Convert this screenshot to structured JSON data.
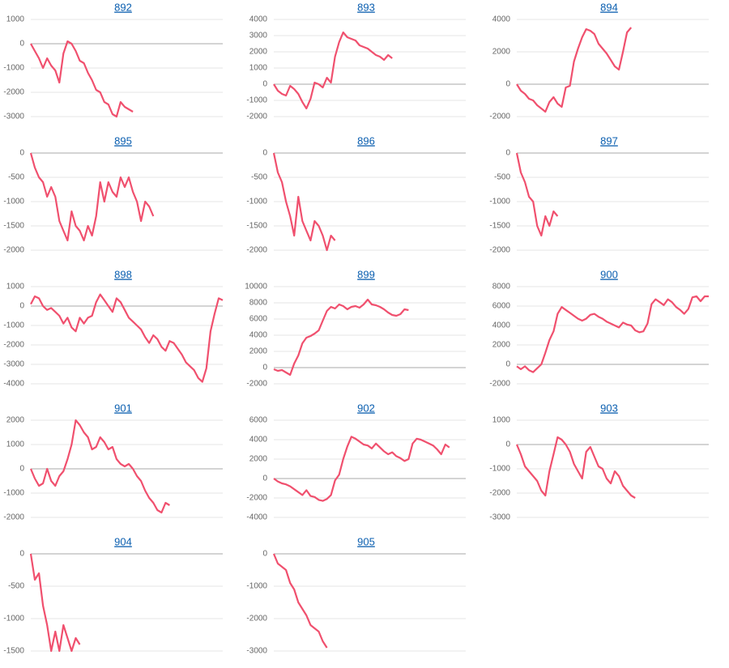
{
  "chart_data": [
    {
      "type": "line",
      "title": "892",
      "color": "#f0506e",
      "grid": true,
      "ylim": [
        -3000,
        1000
      ],
      "yticks": [
        1000,
        0,
        -1000,
        -2000,
        -3000
      ],
      "values": [
        0,
        -300,
        -600,
        -1000,
        -600,
        -900,
        -1100,
        -1600,
        -400,
        100,
        0,
        -300,
        -700,
        -800,
        -1200,
        -1500,
        -1900,
        -2000,
        -2400,
        -2500,
        -2900,
        -3000,
        -2400,
        -2600,
        -2700,
        -2800
      ]
    },
    {
      "type": "line",
      "title": "893",
      "color": "#f0506e",
      "grid": true,
      "ylim": [
        -2000,
        4000
      ],
      "yticks": [
        4000,
        3000,
        2000,
        1000,
        0,
        -1000,
        -2000
      ],
      "values": [
        0,
        -400,
        -600,
        -700,
        -100,
        -300,
        -600,
        -1100,
        -1500,
        -900,
        100,
        0,
        -200,
        400,
        100,
        1700,
        2600,
        3200,
        2900,
        2800,
        2700,
        2400,
        2300,
        2200,
        2000,
        1800,
        1700,
        1500,
        1800,
        1600
      ]
    },
    {
      "type": "line",
      "title": "894",
      "color": "#f0506e",
      "grid": true,
      "ylim": [
        -2000,
        4000
      ],
      "yticks": [
        4000,
        2000,
        0,
        -2000
      ],
      "values": [
        0,
        -400,
        -600,
        -900,
        -1000,
        -1300,
        -1500,
        -1700,
        -1100,
        -800,
        -1200,
        -1400,
        -200,
        -100,
        1400,
        2200,
        2900,
        3400,
        3300,
        3100,
        2500,
        2200,
        1900,
        1500,
        1100,
        900,
        2000,
        3200,
        3500
      ]
    },
    {
      "type": "line",
      "title": "895",
      "color": "#f0506e",
      "grid": true,
      "ylim": [
        -2000,
        0
      ],
      "yticks": [
        0,
        -500,
        -1000,
        -1500,
        -2000
      ],
      "values": [
        0,
        -300,
        -500,
        -600,
        -900,
        -700,
        -900,
        -1400,
        -1600,
        -1800,
        -1200,
        -1500,
        -1600,
        -1800,
        -1500,
        -1700,
        -1300,
        -600,
        -1000,
        -600,
        -800,
        -900,
        -500,
        -700,
        -500,
        -800,
        -1000,
        -1400,
        -1000,
        -1100,
        -1300
      ]
    },
    {
      "type": "line",
      "title": "896",
      "color": "#f0506e",
      "grid": true,
      "ylim": [
        -2000,
        0
      ],
      "yticks": [
        0,
        -500,
        -1000,
        -1500,
        -2000
      ],
      "values": [
        0,
        -400,
        -600,
        -1000,
        -1300,
        -1700,
        -900,
        -1400,
        -1600,
        -1800,
        -1400,
        -1500,
        -1700,
        -2000,
        -1700,
        -1800
      ]
    },
    {
      "type": "line",
      "title": "897",
      "color": "#f0506e",
      "grid": true,
      "ylim": [
        -2000,
        0
      ],
      "yticks": [
        0,
        -500,
        -1000,
        -1500,
        -2000
      ],
      "values": [
        0,
        -400,
        -600,
        -900,
        -1000,
        -1500,
        -1700,
        -1300,
        -1500,
        -1200,
        -1300
      ]
    },
    {
      "type": "line",
      "title": "898",
      "color": "#f0506e",
      "grid": true,
      "ylim": [
        -4000,
        1000
      ],
      "yticks": [
        1000,
        0,
        -1000,
        -2000,
        -3000,
        -4000
      ],
      "values": [
        100,
        500,
        400,
        0,
        -200,
        -100,
        -300,
        -500,
        -900,
        -600,
        -1100,
        -1300,
        -600,
        -900,
        -600,
        -500,
        200,
        600,
        300,
        0,
        -300,
        400,
        200,
        -200,
        -600,
        -800,
        -1000,
        -1200,
        -1600,
        -1900,
        -1500,
        -1700,
        -2100,
        -2300,
        -1800,
        -1900,
        -2200,
        -2500,
        -2900,
        -3100,
        -3300,
        -3700,
        -3900,
        -3200,
        -1300,
        -400,
        400,
        300
      ]
    },
    {
      "type": "line",
      "title": "899",
      "color": "#f0506e",
      "grid": true,
      "ylim": [
        -2000,
        10000
      ],
      "yticks": [
        10000,
        8000,
        6000,
        4000,
        2000,
        0,
        -2000
      ],
      "values": [
        -200,
        -400,
        -300,
        -600,
        -900,
        500,
        1500,
        3000,
        3700,
        3900,
        4200,
        4600,
        5800,
        7000,
        7500,
        7300,
        7800,
        7600,
        7200,
        7500,
        7600,
        7400,
        7800,
        8400,
        7800,
        7700,
        7500,
        7200,
        6800,
        6500,
        6400,
        6600,
        7200,
        7100
      ]
    },
    {
      "type": "line",
      "title": "900",
      "color": "#f0506e",
      "grid": true,
      "ylim": [
        -2000,
        8000
      ],
      "yticks": [
        8000,
        6000,
        4000,
        2000,
        0,
        -2000
      ],
      "values": [
        -200,
        -500,
        -200,
        -600,
        -800,
        -400,
        0,
        1200,
        2500,
        3400,
        5200,
        5900,
        5600,
        5300,
        5000,
        4700,
        4500,
        4700,
        5100,
        5200,
        4900,
        4700,
        4400,
        4200,
        4000,
        3800,
        4300,
        4100,
        4000,
        3500,
        3300,
        3400,
        4200,
        6200,
        6700,
        6400,
        6100,
        6700,
        6400,
        5900,
        5600,
        5200,
        5700,
        6900,
        7000,
        6500,
        7000,
        7000
      ]
    },
    {
      "type": "line",
      "title": "901",
      "color": "#f0506e",
      "grid": true,
      "ylim": [
        -2000,
        2000
      ],
      "yticks": [
        2000,
        1000,
        0,
        -1000,
        -2000
      ],
      "values": [
        0,
        -400,
        -700,
        -600,
        0,
        -500,
        -700,
        -300,
        -100,
        400,
        1000,
        2000,
        1800,
        1500,
        1300,
        800,
        900,
        1300,
        1100,
        800,
        900,
        400,
        200,
        100,
        200,
        0,
        -300,
        -500,
        -900,
        -1200,
        -1400,
        -1700,
        -1800,
        -1400,
        -1500
      ]
    },
    {
      "type": "line",
      "title": "902",
      "color": "#f0506e",
      "grid": true,
      "ylim": [
        -4000,
        6000
      ],
      "yticks": [
        6000,
        4000,
        2000,
        0,
        -2000,
        -4000
      ],
      "values": [
        0,
        -300,
        -500,
        -600,
        -800,
        -1100,
        -1400,
        -1700,
        -1200,
        -1800,
        -1900,
        -2200,
        -2300,
        -2100,
        -1700,
        -200,
        400,
        2000,
        3300,
        4300,
        4100,
        3800,
        3500,
        3400,
        3100,
        3600,
        3200,
        2800,
        2500,
        2700,
        2300,
        2100,
        1800,
        2000,
        3600,
        4100,
        4000,
        3800,
        3600,
        3400,
        3000,
        2500,
        3500,
        3200
      ]
    },
    {
      "type": "line",
      "title": "903",
      "color": "#f0506e",
      "grid": true,
      "ylim": [
        -3000,
        1000
      ],
      "yticks": [
        1000,
        0,
        -1000,
        -2000,
        -3000
      ],
      "values": [
        0,
        -400,
        -900,
        -1100,
        -1300,
        -1500,
        -1900,
        -2100,
        -1100,
        -400,
        300,
        200,
        0,
        -300,
        -800,
        -1100,
        -1400,
        -300,
        -100,
        -500,
        -900,
        -1000,
        -1400,
        -1600,
        -1100,
        -1300,
        -1700,
        -1900,
        -2100,
        -2200
      ]
    },
    {
      "type": "line",
      "title": "904",
      "color": "#f0506e",
      "grid": true,
      "ylim": [
        -1500,
        0
      ],
      "yticks": [
        0,
        -500,
        -1000,
        -1500
      ],
      "values": [
        0,
        -400,
        -300,
        -800,
        -1100,
        -1500,
        -1200,
        -1500,
        -1100,
        -1300,
        -1500,
        -1300,
        -1400
      ]
    },
    {
      "type": "line",
      "title": "905",
      "color": "#f0506e",
      "grid": true,
      "ylim": [
        -3000,
        0
      ],
      "yticks": [
        0,
        -1000,
        -2000,
        -3000
      ],
      "values": [
        0,
        -300,
        -400,
        -500,
        -900,
        -1100,
        -1500,
        -1700,
        -1900,
        -2200,
        -2300,
        -2400,
        -2700,
        -2900
      ]
    }
  ]
}
